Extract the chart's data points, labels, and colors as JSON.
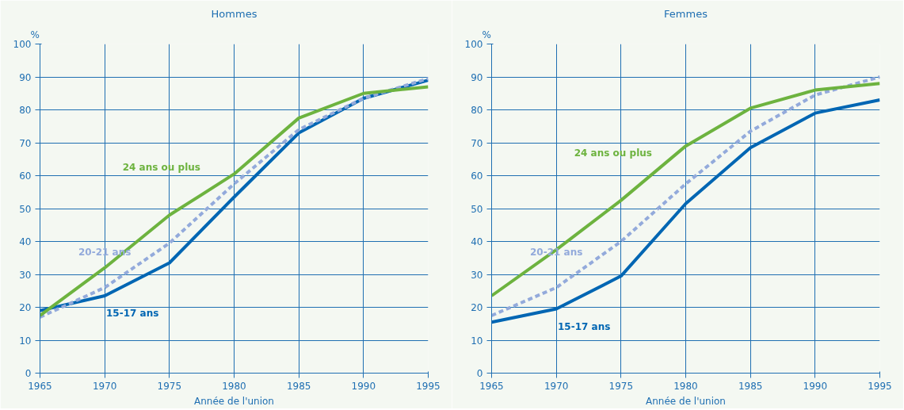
{
  "chart_data": [
    {
      "type": "line",
      "title": "Hommes",
      "xlabel": "Année de l'union",
      "ylabel": "%",
      "x": [
        1965,
        1970,
        1975,
        1980,
        1985,
        1990,
        1995
      ],
      "series": [
        {
          "name": "15-17 ans",
          "color": "#0066b3",
          "line_style": "solid",
          "values": [
            19,
            23.5,
            33.5,
            53.5,
            73,
            83.5,
            89
          ]
        },
        {
          "name": "20-21 ans",
          "color": "#93aadb",
          "line_style": "dashed",
          "values": [
            17,
            26,
            39.5,
            57.5,
            74,
            83.5,
            89.5
          ]
        },
        {
          "name": "24 ans ou plus",
          "color": "#6db33f",
          "line_style": "solid",
          "values": [
            17.5,
            32,
            48,
            60.5,
            77.5,
            85,
            87
          ]
        }
      ],
      "xlim": [
        1965,
        1995
      ],
      "xticks": [
        1965,
        1970,
        1975,
        1980,
        1985,
        1990,
        1995
      ],
      "ylim": [
        0,
        100
      ],
      "yticks": [
        0,
        10,
        20,
        30,
        40,
        50,
        60,
        70,
        80,
        90,
        100
      ],
      "grid": true,
      "marker": "none"
    },
    {
      "type": "line",
      "title": "Femmes",
      "xlabel": "Année de l'union",
      "ylabel": "%",
      "x": [
        1965,
        1970,
        1975,
        1980,
        1985,
        1990,
        1995
      ],
      "series": [
        {
          "name": "15-17 ans",
          "color": "#0066b3",
          "line_style": "solid",
          "values": [
            15.5,
            19.5,
            29.5,
            51.5,
            68.5,
            79,
            83
          ]
        },
        {
          "name": "20-21 ans",
          "color": "#93aadb",
          "line_style": "dashed",
          "values": [
            17.5,
            26,
            40,
            57.5,
            73.5,
            84.5,
            90
          ]
        },
        {
          "name": "24 ans ou plus",
          "color": "#6db33f",
          "line_style": "solid",
          "values": [
            23.5,
            37.5,
            52.5,
            69,
            80.5,
            86,
            88
          ]
        }
      ],
      "xlim": [
        1965,
        1995
      ],
      "xticks": [
        1965,
        1970,
        1975,
        1980,
        1985,
        1990,
        1995
      ],
      "ylim": [
        0,
        100
      ],
      "yticks": [
        0,
        10,
        20,
        30,
        40,
        50,
        60,
        70,
        80,
        90,
        100
      ],
      "grid": true,
      "marker": "none"
    }
  ]
}
